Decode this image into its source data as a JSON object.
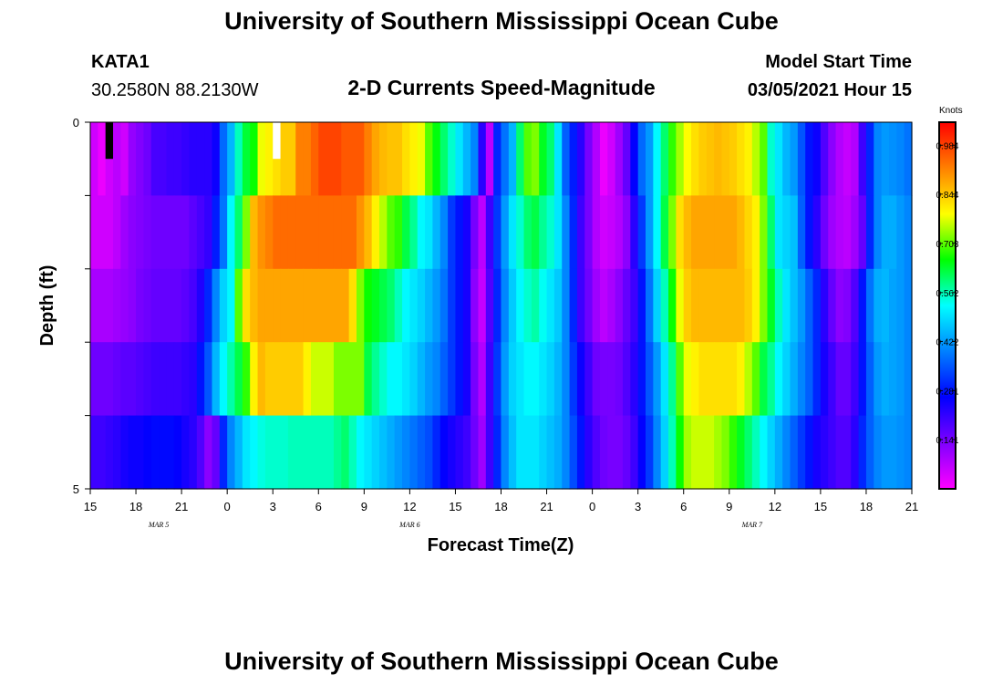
{
  "header": {
    "top_title": "University of Southern Mississippi Ocean Cube",
    "bottom_title": "University of Southern Mississippi Ocean Cube",
    "station": "KATA1",
    "coords": "30.2580N 88.2130W",
    "model_start_label": "Model Start Time",
    "model_start_value": "03/05/2021 Hour 15"
  },
  "chart_data": {
    "type": "heatmap",
    "title": "2-D Currents Speed-Magnitude",
    "xlabel": "Forecast Time(Z)",
    "ylabel": "Depth (ft)",
    "colorbar_label": "Knots",
    "colorbar_ticks": [
      "0.984",
      "0.844",
      "0.703",
      "0.562",
      "0.422",
      "0.281",
      "0.141"
    ],
    "colorbar_range": [
      0,
      1.05
    ],
    "x_range_hours": [
      0,
      54
    ],
    "x_tick_labels": [
      "15",
      "18",
      "21",
      "0",
      "3",
      "6",
      "9",
      "12",
      "15",
      "18",
      "21",
      "0",
      "3",
      "6",
      "9",
      "12",
      "15",
      "18",
      "21"
    ],
    "date_labels": [
      {
        "text": "MAR 5",
        "hour": 4.5
      },
      {
        "text": "MAR 6",
        "hour": 21
      },
      {
        "text": "MAR 7",
        "hour": 43.5
      }
    ],
    "y_tick_labels": [
      "0",
      "5"
    ],
    "y_range": [
      0,
      5
    ],
    "depth_levels": 5,
    "data_notes": "Approximate speed magnitudes (knots) per half-hour column (108 columns); rows are depth layers from surface (0) to bottom (5 ft).",
    "values": [
      [
        0.05,
        0.02,
        0.05,
        0.07,
        0.05,
        0.11,
        0.13,
        0.15,
        0.19,
        0.19,
        0.2,
        0.2,
        0.21,
        0.22,
        0.22,
        0.22,
        0.25,
        0.37,
        0.45,
        0.56,
        0.63,
        0.66,
        0.78,
        0.8,
        0.82,
        0.84,
        0.84,
        0.92,
        0.92,
        0.95,
        0.98,
        0.98,
        0.98,
        0.96,
        0.96,
        0.96,
        0.92,
        0.88,
        0.86,
        0.85,
        0.85,
        0.82,
        0.8,
        0.78,
        0.7,
        0.65,
        0.6,
        0.55,
        0.5,
        0.45,
        0.4,
        0.22,
        0.07,
        0.3,
        0.38,
        0.45,
        0.6,
        0.7,
        0.72,
        0.64,
        0.6,
        0.5,
        0.36,
        0.29,
        0.22,
        0.14,
        0.08,
        0.02,
        0.05,
        0.1,
        0.16,
        0.26,
        0.37,
        0.42,
        0.52,
        0.6,
        0.68,
        0.74,
        0.79,
        0.82,
        0.84,
        0.85,
        0.86,
        0.85,
        0.84,
        0.82,
        0.8,
        0.75,
        0.7,
        0.55,
        0.5,
        0.45,
        0.42,
        0.35,
        0.28,
        0.25,
        0.18,
        0.12,
        0.08,
        0.06,
        0.08,
        0.2,
        0.3,
        0.4,
        0.42,
        0.41,
        0.4,
        0.38
      ],
      [
        0.05,
        0.05,
        0.05,
        0.07,
        0.1,
        0.12,
        0.13,
        0.14,
        0.15,
        0.15,
        0.15,
        0.15,
        0.15,
        0.17,
        0.19,
        0.21,
        0.29,
        0.38,
        0.52,
        0.6,
        0.72,
        0.86,
        0.9,
        0.92,
        0.94,
        0.94,
        0.94,
        0.94,
        0.94,
        0.94,
        0.94,
        0.94,
        0.94,
        0.94,
        0.94,
        0.9,
        0.86,
        0.8,
        0.75,
        0.7,
        0.68,
        0.62,
        0.58,
        0.52,
        0.5,
        0.45,
        0.4,
        0.32,
        0.28,
        0.24,
        0.14,
        0.07,
        0.2,
        0.32,
        0.42,
        0.5,
        0.55,
        0.6,
        0.62,
        0.58,
        0.55,
        0.5,
        0.4,
        0.3,
        0.2,
        0.14,
        0.08,
        0.05,
        0.06,
        0.08,
        0.12,
        0.22,
        0.32,
        0.42,
        0.52,
        0.62,
        0.72,
        0.82,
        0.86,
        0.88,
        0.88,
        0.88,
        0.88,
        0.88,
        0.88,
        0.86,
        0.83,
        0.8,
        0.72,
        0.6,
        0.5,
        0.48,
        0.46,
        0.36,
        0.28,
        0.22,
        0.15,
        0.1,
        0.08,
        0.07,
        0.1,
        0.16,
        0.3,
        0.4,
        0.44,
        0.44,
        0.42,
        0.4
      ],
      [
        0.09,
        0.09,
        0.09,
        0.1,
        0.11,
        0.12,
        0.14,
        0.15,
        0.16,
        0.16,
        0.16,
        0.16,
        0.17,
        0.19,
        0.23,
        0.3,
        0.4,
        0.48,
        0.52,
        0.7,
        0.82,
        0.86,
        0.88,
        0.88,
        0.88,
        0.88,
        0.88,
        0.88,
        0.88,
        0.88,
        0.88,
        0.88,
        0.88,
        0.88,
        0.82,
        0.72,
        0.66,
        0.64,
        0.62,
        0.6,
        0.56,
        0.52,
        0.5,
        0.48,
        0.45,
        0.42,
        0.38,
        0.32,
        0.28,
        0.24,
        0.12,
        0.06,
        0.18,
        0.3,
        0.4,
        0.47,
        0.52,
        0.55,
        0.57,
        0.53,
        0.5,
        0.47,
        0.4,
        0.3,
        0.2,
        0.15,
        0.1,
        0.07,
        0.09,
        0.12,
        0.16,
        0.2,
        0.28,
        0.38,
        0.48,
        0.56,
        0.66,
        0.78,
        0.84,
        0.86,
        0.86,
        0.86,
        0.86,
        0.86,
        0.86,
        0.86,
        0.84,
        0.8,
        0.72,
        0.64,
        0.56,
        0.5,
        0.46,
        0.42,
        0.36,
        0.3,
        0.22,
        0.16,
        0.12,
        0.13,
        0.18,
        0.28,
        0.38,
        0.44,
        0.45,
        0.43,
        0.42,
        0.4
      ],
      [
        0.15,
        0.15,
        0.15,
        0.16,
        0.17,
        0.17,
        0.18,
        0.19,
        0.2,
        0.2,
        0.2,
        0.2,
        0.21,
        0.22,
        0.28,
        0.35,
        0.45,
        0.52,
        0.57,
        0.62,
        0.68,
        0.8,
        0.86,
        0.84,
        0.84,
        0.84,
        0.84,
        0.84,
        0.8,
        0.76,
        0.76,
        0.76,
        0.72,
        0.72,
        0.72,
        0.72,
        0.62,
        0.58,
        0.55,
        0.52,
        0.52,
        0.5,
        0.48,
        0.45,
        0.42,
        0.4,
        0.36,
        0.32,
        0.28,
        0.24,
        0.14,
        0.08,
        0.2,
        0.32,
        0.42,
        0.48,
        0.5,
        0.52,
        0.52,
        0.5,
        0.48,
        0.45,
        0.4,
        0.32,
        0.25,
        0.2,
        0.15,
        0.14,
        0.14,
        0.15,
        0.18,
        0.22,
        0.28,
        0.35,
        0.42,
        0.5,
        0.58,
        0.7,
        0.78,
        0.8,
        0.82,
        0.82,
        0.82,
        0.82,
        0.82,
        0.8,
        0.75,
        0.7,
        0.62,
        0.58,
        0.52,
        0.48,
        0.44,
        0.4,
        0.36,
        0.3,
        0.24,
        0.2,
        0.16,
        0.16,
        0.2,
        0.28,
        0.36,
        0.42,
        0.44,
        0.43,
        0.42,
        0.4
      ],
      [
        0.2,
        0.2,
        0.21,
        0.22,
        0.24,
        0.25,
        0.25,
        0.26,
        0.27,
        0.27,
        0.27,
        0.26,
        0.24,
        0.22,
        0.18,
        0.12,
        0.16,
        0.3,
        0.4,
        0.45,
        0.5,
        0.52,
        0.54,
        0.55,
        0.55,
        0.55,
        0.56,
        0.56,
        0.56,
        0.56,
        0.56,
        0.56,
        0.58,
        0.6,
        0.56,
        0.52,
        0.5,
        0.48,
        0.46,
        0.44,
        0.42,
        0.4,
        0.38,
        0.36,
        0.34,
        0.3,
        0.26,
        0.24,
        0.22,
        0.2,
        0.15,
        0.1,
        0.2,
        0.3,
        0.4,
        0.46,
        0.5,
        0.5,
        0.5,
        0.48,
        0.46,
        0.44,
        0.4,
        0.34,
        0.28,
        0.22,
        0.18,
        0.15,
        0.14,
        0.14,
        0.16,
        0.2,
        0.26,
        0.32,
        0.4,
        0.48,
        0.56,
        0.66,
        0.74,
        0.76,
        0.76,
        0.76,
        0.74,
        0.72,
        0.68,
        0.64,
        0.6,
        0.56,
        0.52,
        0.48,
        0.44,
        0.4,
        0.36,
        0.32,
        0.28,
        0.24,
        0.22,
        0.2,
        0.18,
        0.18,
        0.22,
        0.3,
        0.36,
        0.4,
        0.42,
        0.42,
        0.41,
        0.4
      ]
    ],
    "mask_cells": [
      {
        "row": 0,
        "col": 2,
        "color": "#000000"
      },
      {
        "row": 0,
        "col": 24,
        "color": "#ffffff"
      }
    ]
  },
  "colors": {
    "colormap": [
      "#ff00ff",
      "#8000ff",
      "#0000ff",
      "#0080ff",
      "#00ffff",
      "#00ff00",
      "#ffff00",
      "#ff8000",
      "#ff0000"
    ]
  }
}
